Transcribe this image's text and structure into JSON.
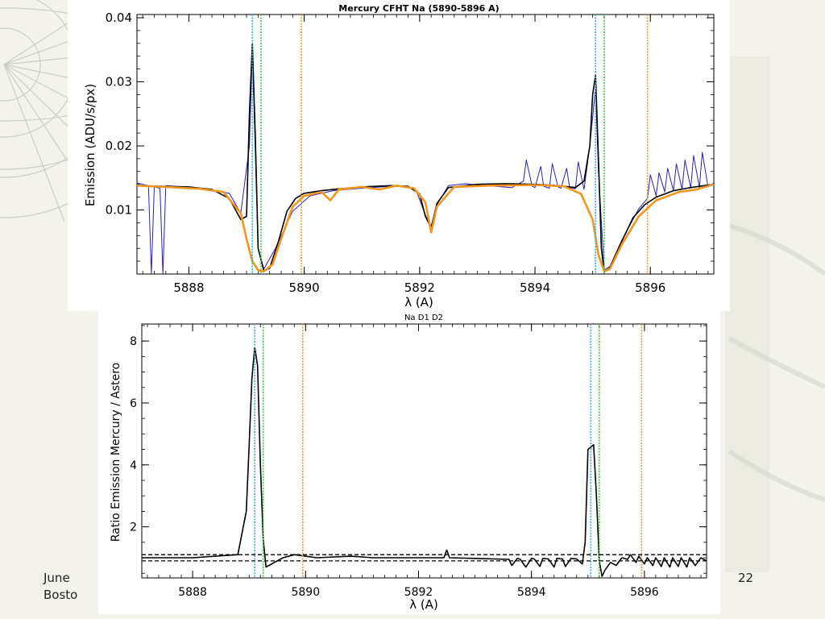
{
  "slide": {
    "footer_left_line1": "June",
    "footer_left_line2": "Bosto",
    "page_number": "22"
  },
  "colors": {
    "black_series": "#000000",
    "blue_series": "#2a1fc8",
    "orange_series": "#f0961e",
    "cyan_line": "#29b6e6",
    "green_line": "#3ccc3c",
    "orange_line": "#f0961e"
  },
  "chart_data": [
    {
      "type": "line",
      "title": "Mercury CFHT  Na (5890-5896 A)",
      "xlabel": "λ (A)",
      "ylabel": "Emission (ADU/s/px)",
      "xlim": [
        5887.1,
        5897.1
      ],
      "ylim": [
        0.0,
        0.0405
      ],
      "xticks": [
        5888,
        5890,
        5892,
        5894,
        5896
      ],
      "xtick_labels": [
        "5888",
        "5890",
        "5892",
        "5894",
        "5896"
      ],
      "yticks": [
        0.01,
        0.02,
        0.03,
        0.04
      ],
      "ytick_labels": [
        "0.01",
        "0.02",
        "0.03",
        "0.04"
      ],
      "vertical_lines": [
        {
          "x": 5889.1,
          "color": "cyan"
        },
        {
          "x": 5889.25,
          "color": "green"
        },
        {
          "x": 5889.95,
          "color": "orange"
        },
        {
          "x": 5895.05,
          "color": "cyan"
        },
        {
          "x": 5895.2,
          "color": "green"
        },
        {
          "x": 5895.95,
          "color": "orange"
        }
      ],
      "series": [
        {
          "color": "black",
          "x": [
            5887.1,
            5887.5,
            5888.0,
            5888.4,
            5888.7,
            5888.9,
            5889.0,
            5889.05,
            5889.1,
            5889.15,
            5889.2,
            5889.3,
            5889.4,
            5889.55,
            5889.7,
            5889.85,
            5890.0,
            5890.3,
            5890.6,
            5891.0,
            5891.5,
            5891.8,
            5892.0,
            5892.1,
            5892.2,
            5892.3,
            5892.5,
            5893.0,
            5893.5,
            5894.0,
            5894.4,
            5894.7,
            5894.85,
            5894.95,
            5895.0,
            5895.05,
            5895.1,
            5895.15,
            5895.2,
            5895.3,
            5895.5,
            5895.7,
            5895.9,
            5896.1,
            5896.4,
            5896.7,
            5897.1
          ],
          "y": [
            0.0138,
            0.0137,
            0.0136,
            0.0132,
            0.0118,
            0.0085,
            0.009,
            0.025,
            0.036,
            0.022,
            0.004,
            0.0005,
            0.0009,
            0.005,
            0.0098,
            0.0118,
            0.0126,
            0.013,
            0.0133,
            0.0136,
            0.0138,
            0.0137,
            0.0125,
            0.009,
            0.0072,
            0.011,
            0.0135,
            0.014,
            0.0141,
            0.014,
            0.0138,
            0.0135,
            0.0145,
            0.02,
            0.028,
            0.031,
            0.018,
            0.004,
            0.0003,
            0.001,
            0.005,
            0.0088,
            0.0108,
            0.012,
            0.013,
            0.0135,
            0.014
          ]
        },
        {
          "color": "orange",
          "x": [
            5887.1,
            5887.6,
            5888.2,
            5888.6,
            5888.9,
            5889.0,
            5889.1,
            5889.2,
            5889.3,
            5889.45,
            5889.6,
            5889.8,
            5890.0,
            5890.3,
            5890.45,
            5890.6,
            5891.0,
            5891.3,
            5891.6,
            5891.9,
            5892.1,
            5892.2,
            5892.3,
            5892.6,
            5893.2,
            5894.0,
            5894.5,
            5894.8,
            5895.0,
            5895.1,
            5895.2,
            5895.3,
            5895.5,
            5895.8,
            5896.1,
            5896.5,
            5896.8,
            5897.1
          ],
          "y": [
            0.0138,
            0.0136,
            0.0133,
            0.0128,
            0.0095,
            0.0055,
            0.002,
            0.0006,
            0.0004,
            0.0015,
            0.0055,
            0.0105,
            0.0122,
            0.0128,
            0.0115,
            0.0132,
            0.0136,
            0.0132,
            0.0138,
            0.0134,
            0.0112,
            0.0065,
            0.0105,
            0.0136,
            0.0138,
            0.0139,
            0.0137,
            0.0125,
            0.0085,
            0.003,
            0.0004,
            0.0008,
            0.0045,
            0.009,
            0.0115,
            0.0128,
            0.0132,
            0.014
          ]
        },
        {
          "color": "blue",
          "x": [
            5887.1,
            5887.3,
            5887.35,
            5887.4,
            5887.5,
            5887.55,
            5887.6,
            5887.9,
            5888.3,
            5888.7,
            5888.9,
            5889.05,
            5889.1,
            5889.2,
            5889.3,
            5889.5,
            5889.8,
            5890.1,
            5890.5,
            5891.0,
            5891.5,
            5891.8,
            5891.95,
            5892.1,
            5892.2,
            5892.3,
            5892.5,
            5892.8,
            5893.0,
            5893.3,
            5893.6,
            5893.8,
            5893.85,
            5893.95,
            5894.0,
            5894.1,
            5894.15,
            5894.25,
            5894.3,
            5894.4,
            5894.45,
            5894.55,
            5894.6,
            5894.7,
            5894.75,
            5894.85,
            5894.95,
            5895.05,
            5895.1,
            5895.2,
            5895.3,
            5895.5,
            5895.8,
            5895.95,
            5896.0,
            5896.1,
            5896.15,
            5896.25,
            5896.3,
            5896.4,
            5896.45,
            5896.55,
            5896.6,
            5896.7,
            5896.75,
            5896.85,
            5896.9,
            5897.0,
            5897.1
          ],
          "y": [
            0.0142,
            0.0138,
            0.0,
            0.0136,
            0.0134,
            0.0,
            0.0138,
            0.0136,
            0.0132,
            0.0126,
            0.0095,
            0.02,
            0.035,
            0.004,
            0.0008,
            0.004,
            0.0098,
            0.0122,
            0.013,
            0.0134,
            0.0137,
            0.0136,
            0.0128,
            0.0092,
            0.0075,
            0.0108,
            0.0138,
            0.0141,
            0.0139,
            0.0137,
            0.0135,
            0.0145,
            0.0178,
            0.0137,
            0.0135,
            0.0168,
            0.0137,
            0.0134,
            0.0172,
            0.0136,
            0.0134,
            0.0165,
            0.0135,
            0.0133,
            0.0175,
            0.0132,
            0.02,
            0.029,
            0.016,
            0.0006,
            0.0012,
            0.0052,
            0.0102,
            0.0118,
            0.0155,
            0.0122,
            0.0158,
            0.0128,
            0.0165,
            0.013,
            0.0172,
            0.0132,
            0.0178,
            0.0134,
            0.0185,
            0.0135,
            0.019,
            0.0136,
            0.0142
          ]
        }
      ]
    },
    {
      "type": "line",
      "title": "Na D1 D2",
      "xlabel": "λ (A)",
      "ylabel": "Ratio Emission Mercury / Astero",
      "xlim": [
        5887.1,
        5897.1
      ],
      "ylim": [
        0.35,
        8.55
      ],
      "xticks": [
        5888,
        5890,
        5892,
        5894,
        5896
      ],
      "xtick_labels": [
        "5888",
        "5890",
        "5892",
        "5894",
        "5896"
      ],
      "yticks": [
        2,
        4,
        6,
        8
      ],
      "ytick_labels": [
        "2",
        "4",
        "6",
        "8"
      ],
      "reference_lines": [
        1.1,
        0.9
      ],
      "vertical_lines": [
        {
          "x": 5889.1,
          "color": "cyan"
        },
        {
          "x": 5889.25,
          "color": "green"
        },
        {
          "x": 5889.95,
          "color": "orange"
        },
        {
          "x": 5895.05,
          "color": "cyan"
        },
        {
          "x": 5895.2,
          "color": "green"
        },
        {
          "x": 5895.95,
          "color": "orange"
        }
      ],
      "series": [
        {
          "color": "black",
          "x": [
            5887.1,
            5888.0,
            5888.8,
            5888.95,
            5889.0,
            5889.05,
            5889.1,
            5889.15,
            5889.2,
            5889.25,
            5889.3,
            5889.4,
            5889.6,
            5889.8,
            5890.2,
            5890.8,
            5891.2,
            5892.0,
            5892.45,
            5892.5,
            5892.55,
            5893.0,
            5893.6,
            5893.65,
            5893.75,
            5893.8,
            5893.9,
            5894.0,
            5894.05,
            5894.15,
            5894.2,
            5894.3,
            5894.4,
            5894.45,
            5894.55,
            5894.6,
            5894.7,
            5894.8,
            5894.9,
            5894.95,
            5895.0,
            5895.1,
            5895.15,
            5895.2,
            5895.25,
            5895.3,
            5895.4,
            5895.5,
            5895.6,
            5895.7,
            5895.75,
            5895.85,
            5895.9,
            5896.0,
            5896.05,
            5896.15,
            5896.2,
            5896.3,
            5896.35,
            5896.45,
            5896.5,
            5896.6,
            5896.65,
            5896.75,
            5896.8,
            5896.9,
            5897.0,
            5897.1
          ],
          "y": [
            1.0,
            1.0,
            1.1,
            2.5,
            4.6,
            6.8,
            7.8,
            7.2,
            4.0,
            1.6,
            0.7,
            0.8,
            1.0,
            1.1,
            1.0,
            1.05,
            1.0,
            1.0,
            1.0,
            1.25,
            1.0,
            0.98,
            0.95,
            0.75,
            0.98,
            0.95,
            0.7,
            0.98,
            0.96,
            0.72,
            0.98,
            0.96,
            0.7,
            0.98,
            0.96,
            0.72,
            0.98,
            0.96,
            0.8,
            1.5,
            4.5,
            4.65,
            3.0,
            0.9,
            0.4,
            0.6,
            0.85,
            0.75,
            1.0,
            0.95,
            1.1,
            0.85,
            1.05,
            0.8,
            1.0,
            0.75,
            1.0,
            0.72,
            1.0,
            0.7,
            1.0,
            0.72,
            1.0,
            0.7,
            1.0,
            0.75,
            1.0,
            0.9
          ]
        }
      ]
    }
  ]
}
